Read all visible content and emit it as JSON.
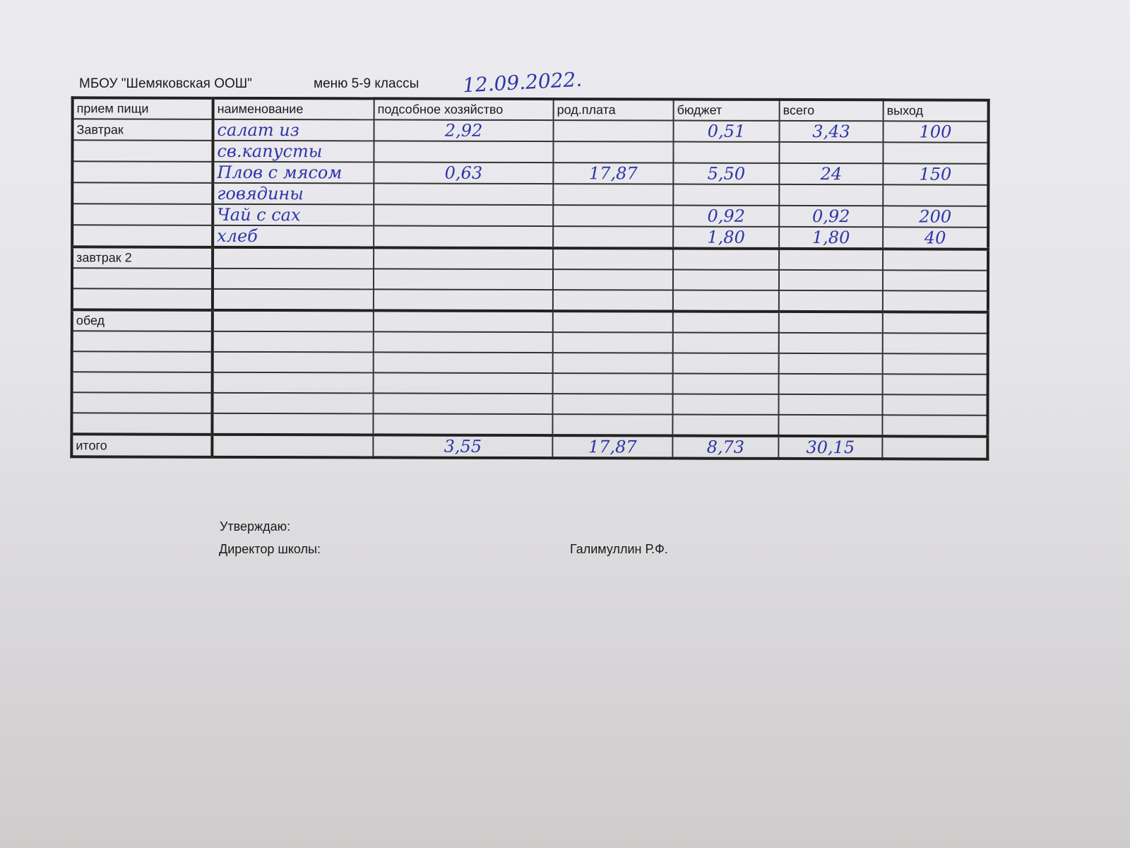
{
  "header": {
    "school": "МБОУ \"Шемяковская ООШ\"",
    "menu": "меню 5-9 классы",
    "date": "12.09.2022."
  },
  "columns": [
    "прием пищи",
    "наименование",
    "подсобное хозяйство",
    "род.плата",
    "бюджет",
    "всего",
    "выход"
  ],
  "sections": [
    {
      "meal": "Завтрак",
      "rows": [
        [
          "салат из",
          "2,92",
          "",
          "0,51",
          "3,43",
          "100"
        ],
        [
          "св.капусты",
          "",
          "",
          "",
          "",
          ""
        ],
        [
          "Плов с мясом",
          "0,63",
          "17,87",
          "5,50",
          "24",
          "150"
        ],
        [
          "говядины",
          "",
          "",
          "",
          "",
          ""
        ],
        [
          "Чай с сах",
          "",
          "",
          "0,92",
          "0,92",
          "200"
        ],
        [
          "хлеб",
          "",
          "",
          "1,80",
          "1,80",
          "40"
        ]
      ]
    },
    {
      "meal": "завтрак 2",
      "rows": [
        [
          "",
          "",
          "",
          "",
          "",
          ""
        ],
        [
          "",
          "",
          "",
          "",
          "",
          ""
        ],
        [
          "",
          "",
          "",
          "",
          "",
          ""
        ]
      ]
    },
    {
      "meal": "обед",
      "rows": [
        [
          "",
          "",
          "",
          "",
          "",
          ""
        ],
        [
          "",
          "",
          "",
          "",
          "",
          ""
        ],
        [
          "",
          "",
          "",
          "",
          "",
          ""
        ],
        [
          "",
          "",
          "",
          "",
          "",
          ""
        ],
        [
          "",
          "",
          "",
          "",
          "",
          ""
        ],
        [
          "",
          "",
          "",
          "",
          "",
          ""
        ]
      ]
    }
  ],
  "total": {
    "label": "итого",
    "name": "",
    "farm": "3,55",
    "parent": "17,87",
    "budget": "8,73",
    "all": "30,15",
    "yield": ""
  },
  "footer": {
    "approve": "Утверждаю:",
    "director": "Директор школы:",
    "name": "Галимуллин Р.Ф."
  }
}
